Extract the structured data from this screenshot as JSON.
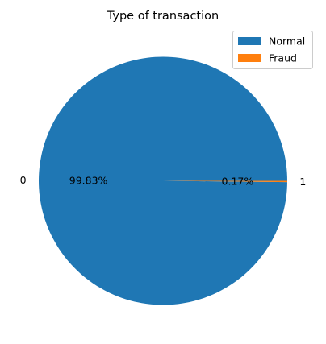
{
  "chart_data": {
    "type": "pie",
    "title": "Type of transaction",
    "categories": [
      "0",
      "1"
    ],
    "values": [
      99.83,
      0.17
    ],
    "value_labels": [
      "99.83%",
      "0.17%"
    ],
    "colors": [
      "#1f77b4",
      "#ff7f0e"
    ],
    "legend": {
      "placement": "top-right",
      "entries": [
        {
          "label": "Normal",
          "color": "#1f77b4"
        },
        {
          "label": "Fraud",
          "color": "#ff7f0e"
        }
      ]
    }
  }
}
